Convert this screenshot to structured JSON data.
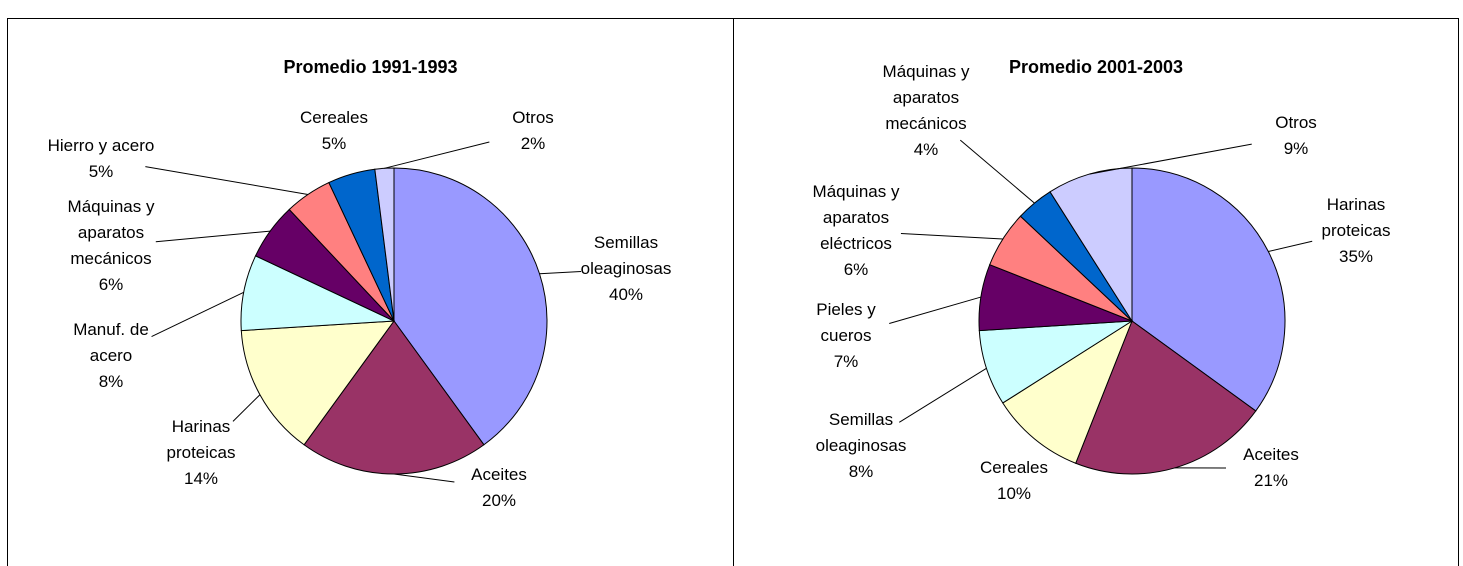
{
  "chart_data": [
    {
      "type": "pie",
      "title": "Promedio 1991-1993",
      "categories": [
        "Semillas oleaginosas",
        "Aceites",
        "Harinas proteicas",
        "Manuf. de acero",
        "Máquinas y aparatos mecánicos",
        "Hierro y acero",
        "Cereales",
        "Otros"
      ],
      "values": [
        40,
        20,
        14,
        8,
        6,
        5,
        5,
        2
      ],
      "value_labels": [
        "40%",
        "20%",
        "14%",
        "8%",
        "6%",
        "5%",
        "5%",
        "2%"
      ],
      "colors": [
        "#9999ff",
        "#993366",
        "#ffffcc",
        "#ccffff",
        "#660066",
        "#ff8080",
        "#0066cc",
        "#ccccff"
      ]
    },
    {
      "type": "pie",
      "title": "Promedio 2001-2003",
      "categories": [
        "Harinas proteicas",
        "Aceites",
        "Cereales",
        "Semillas oleaginosas",
        "Pieles y cueros",
        "Máquinas y aparatos eléctricos",
        "Máquinas y aparatos mecánicos",
        "Otros"
      ],
      "values": [
        35,
        21,
        10,
        8,
        7,
        6,
        4,
        9
      ],
      "value_labels": [
        "35%",
        "21%",
        "10%",
        "8%",
        "7%",
        "6%",
        "4%",
        "9%"
      ],
      "colors": [
        "#9999ff",
        "#993366",
        "#ffffcc",
        "#ccffff",
        "#660066",
        "#ff8080",
        "#0066cc",
        "#ccccff"
      ]
    }
  ]
}
